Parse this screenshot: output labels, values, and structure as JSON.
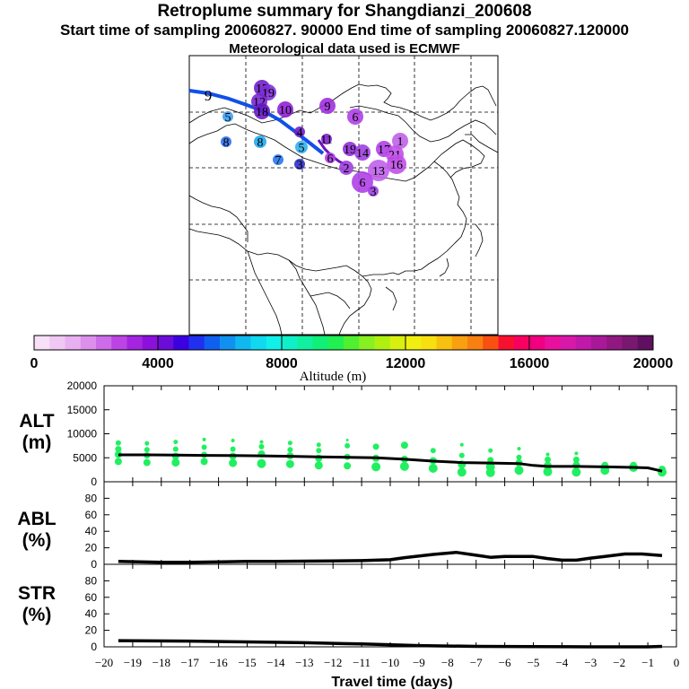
{
  "header": {
    "title": "Retroplume summary for Shangdianzi_200608",
    "sampling_line": "Start time of sampling 20060827. 90000     End time of sampling 20060827.120000",
    "met_line": "Meteorological data used is ECMWF"
  },
  "colorbar": {
    "label": "Altitude (m)",
    "range": [
      0,
      20000
    ],
    "tick_labels": [
      "0",
      "4000",
      "8000",
      "12000",
      "16000",
      "20000"
    ],
    "colors": [
      "#f8e0f8",
      "#f0c8f4",
      "#e8b0f0",
      "#dc90ec",
      "#cc6ce8",
      "#bc44e4",
      "#a424e0",
      "#8c10dc",
      "#6c0cd8",
      "#3c00e0",
      "#2030f0",
      "#1060f0",
      "#1090f0",
      "#10b8f0",
      "#10d8f0",
      "#10f0e8",
      "#10f0c8",
      "#10f0a0",
      "#10f078",
      "#20f050",
      "#50f030",
      "#88f020",
      "#b0f010",
      "#d8f010",
      "#f0f010",
      "#f8e010",
      "#f8c010",
      "#f8a010",
      "#f88010",
      "#f85010",
      "#f81030",
      "#f80060",
      "#f00080",
      "#e8109c",
      "#d818a8",
      "#c018a8",
      "#a81898",
      "#901880",
      "#781870",
      "#601060"
    ]
  },
  "map": {
    "trajectory_start_label": "9",
    "cluster_labels": [
      {
        "label": "9",
        "color": "#2060f0"
      },
      {
        "label": "5",
        "color": "#40a0f0"
      },
      {
        "label": "8",
        "color": "#3070f0"
      },
      {
        "label": "8",
        "color": "#20a8f0"
      },
      {
        "label": "7",
        "color": "#2878f0"
      },
      {
        "label": "3",
        "color": "#3030c8"
      },
      {
        "label": "15",
        "color": "#7020c8"
      },
      {
        "label": "19",
        "color": "#8030d8"
      },
      {
        "label": "12",
        "color": "#7828d0"
      },
      {
        "label": "18",
        "color": "#6818c8"
      },
      {
        "label": "10",
        "color": "#9020d8"
      },
      {
        "label": "9",
        "color": "#a030e0"
      },
      {
        "label": "6",
        "color": "#b040e8"
      },
      {
        "label": "4",
        "color": "#7020c8"
      },
      {
        "label": "5",
        "color": "#30b0f0"
      },
      {
        "label": "11",
        "color": "#8020d0"
      },
      {
        "label": "6",
        "color": "#b040e8"
      },
      {
        "label": "2",
        "color": "#a040e0"
      },
      {
        "label": "19",
        "color": "#9030d8"
      },
      {
        "label": "14",
        "color": "#a040e0"
      },
      {
        "label": "17",
        "color": "#b040e8"
      },
      {
        "label": "1",
        "color": "#c060e8"
      },
      {
        "label": "21",
        "color": "#c050e8"
      },
      {
        "label": "16",
        "color": "#c050e8"
      },
      {
        "label": "13",
        "color": "#c060ec"
      },
      {
        "label": "6",
        "color": "#b040e8"
      },
      {
        "label": "3",
        "color": "#a040e0"
      }
    ]
  },
  "chart_data": [
    {
      "type": "scatter",
      "panel": "ALT",
      "ylabel_line1": "ALT",
      "ylabel_line2": "(m)",
      "ylim": [
        0,
        20000
      ],
      "yticks": [
        "0",
        "5000",
        "10000",
        "15000",
        "20000"
      ],
      "line_x": [
        -19.5,
        -18.5,
        -17.5,
        -16.5,
        -15.5,
        -14.5,
        -13.5,
        -12.5,
        -11.5,
        -10.5,
        -9.5,
        -8.5,
        -7.5,
        -6.5,
        -5.5,
        -5.0,
        -4.5,
        -3.5,
        -2.5,
        -1.5,
        -1.0,
        -0.5
      ],
      "line_y": [
        5600,
        5600,
        5550,
        5500,
        5450,
        5400,
        5300,
        5200,
        5100,
        5000,
        4700,
        4300,
        4000,
        3900,
        3800,
        3400,
        3200,
        3200,
        3100,
        3000,
        2900,
        2200
      ],
      "scatter_points": [
        [
          -19.5,
          4200,
          4
        ],
        [
          -19.5,
          5700,
          4
        ],
        [
          -19.5,
          6800,
          3.5
        ],
        [
          -19.5,
          8100,
          3
        ],
        [
          -18.5,
          4000,
          4
        ],
        [
          -18.5,
          5500,
          3.5
        ],
        [
          -18.5,
          6700,
          3
        ],
        [
          -18.5,
          8000,
          2.5
        ],
        [
          -17.5,
          4000,
          4.5
        ],
        [
          -17.5,
          5300,
          4
        ],
        [
          -17.5,
          6800,
          3
        ],
        [
          -17.5,
          8300,
          2.5
        ],
        [
          -16.5,
          4200,
          4
        ],
        [
          -16.5,
          5600,
          3.5
        ],
        [
          -16.5,
          7200,
          3
        ],
        [
          -16.5,
          8800,
          2
        ],
        [
          -15.5,
          3900,
          4.5
        ],
        [
          -15.5,
          5300,
          4
        ],
        [
          -15.5,
          6800,
          3
        ],
        [
          -15.5,
          8600,
          2
        ],
        [
          -14.5,
          3800,
          5
        ],
        [
          -14.5,
          5800,
          4
        ],
        [
          -14.5,
          7300,
          3
        ],
        [
          -14.5,
          8300,
          2
        ],
        [
          -13.5,
          3700,
          4.5
        ],
        [
          -13.5,
          5400,
          4
        ],
        [
          -13.5,
          6700,
          3
        ],
        [
          -13.5,
          8100,
          2.5
        ],
        [
          -12.5,
          3400,
          4.5
        ],
        [
          -12.5,
          4900,
          4
        ],
        [
          -12.5,
          6500,
          3
        ],
        [
          -12.5,
          7700,
          2.5
        ],
        [
          -11.5,
          3300,
          4
        ],
        [
          -11.5,
          5200,
          3.5
        ],
        [
          -11.5,
          7500,
          3
        ],
        [
          -11.5,
          8700,
          1.5
        ],
        [
          -10.5,
          3100,
          5
        ],
        [
          -10.5,
          4900,
          4
        ],
        [
          -10.5,
          7300,
          3.5
        ],
        [
          -9.5,
          3200,
          5
        ],
        [
          -9.5,
          4700,
          4
        ],
        [
          -9.5,
          7600,
          4
        ],
        [
          -8.5,
          2800,
          5
        ],
        [
          -8.5,
          4400,
          4
        ],
        [
          -8.5,
          6500,
          3
        ],
        [
          -7.5,
          2000,
          5
        ],
        [
          -7.5,
          3600,
          4.5
        ],
        [
          -7.5,
          5500,
          3
        ],
        [
          -7.5,
          7700,
          2
        ],
        [
          -6.5,
          1900,
          5
        ],
        [
          -6.5,
          3100,
          5
        ],
        [
          -6.5,
          4500,
          3.5
        ],
        [
          -6.5,
          6500,
          2.5
        ],
        [
          -5.5,
          2400,
          5
        ],
        [
          -5.5,
          3900,
          4
        ],
        [
          -5.5,
          5100,
          3
        ],
        [
          -5.5,
          6900,
          2
        ],
        [
          -4.5,
          2100,
          5
        ],
        [
          -4.5,
          3300,
          4.5
        ],
        [
          -4.5,
          4600,
          3.5
        ],
        [
          -4.5,
          5700,
          2
        ],
        [
          -3.5,
          2000,
          5
        ],
        [
          -3.5,
          3500,
          4
        ],
        [
          -3.5,
          4600,
          3.5
        ],
        [
          -3.5,
          5900,
          2
        ],
        [
          -2.5,
          2400,
          5
        ],
        [
          -2.5,
          3400,
          4
        ],
        [
          -1.5,
          3000,
          5
        ],
        [
          -1.5,
          3400,
          4
        ],
        [
          -0.5,
          2000,
          5
        ],
        [
          -0.5,
          2600,
          4
        ]
      ]
    },
    {
      "type": "line",
      "panel": "ABL",
      "ylabel_line1": "ABL",
      "ylabel_line2": "(%)",
      "ylim": [
        0,
        100
      ],
      "yticks": [
        "0",
        "20",
        "40",
        "60",
        "80"
      ],
      "x": [
        -19.5,
        -18.0,
        -17.0,
        -15.0,
        -14.0,
        -12.0,
        -11.0,
        -10.0,
        -9.5,
        -8.5,
        -7.7,
        -7.0,
        -6.5,
        -6.0,
        -5.0,
        -4.5,
        -4.0,
        -3.5,
        -3.0,
        -2.5,
        -1.8,
        -1.2,
        -0.5
      ],
      "y": [
        3.5,
        2.5,
        2.5,
        3.5,
        3.5,
        4.0,
        4.5,
        5.5,
        8.0,
        12.0,
        14.5,
        11.0,
        8.5,
        9.5,
        9.5,
        7.0,
        5.0,
        5.0,
        7.5,
        9.5,
        12.5,
        12.5,
        10.5
      ]
    },
    {
      "type": "line",
      "panel": "STR",
      "ylabel_line1": "STR",
      "ylabel_line2": "(%)",
      "ylim": [
        0,
        100
      ],
      "yticks": [
        "0",
        "20",
        "40",
        "60",
        "80"
      ],
      "x": [
        -19.5,
        -17.0,
        -15.0,
        -13.0,
        -11.0,
        -9.0,
        -7.0,
        -5.0,
        -3.0,
        -1.0,
        -0.5
      ],
      "y": [
        7.5,
        7.0,
        6.0,
        5.0,
        3.5,
        1.5,
        0.5,
        0.2,
        0.0,
        0.0,
        0.5
      ]
    }
  ],
  "xaxis": {
    "label": "Travel time (days)",
    "range": [
      -20,
      0
    ],
    "tick_labels": [
      "−20",
      "−19",
      "−18",
      "−17",
      "−16",
      "−15",
      "−14",
      "−13",
      "−12",
      "−11",
      "−10",
      "−9",
      "−8",
      "−7",
      "−6",
      "−5",
      "−4",
      "−3",
      "−2",
      "−1",
      "0"
    ]
  },
  "colors": {
    "scatter": "#20f060",
    "line": "#000000",
    "trajectory_blue": "#1050e8",
    "trajectory_purple": "#7010c0"
  }
}
